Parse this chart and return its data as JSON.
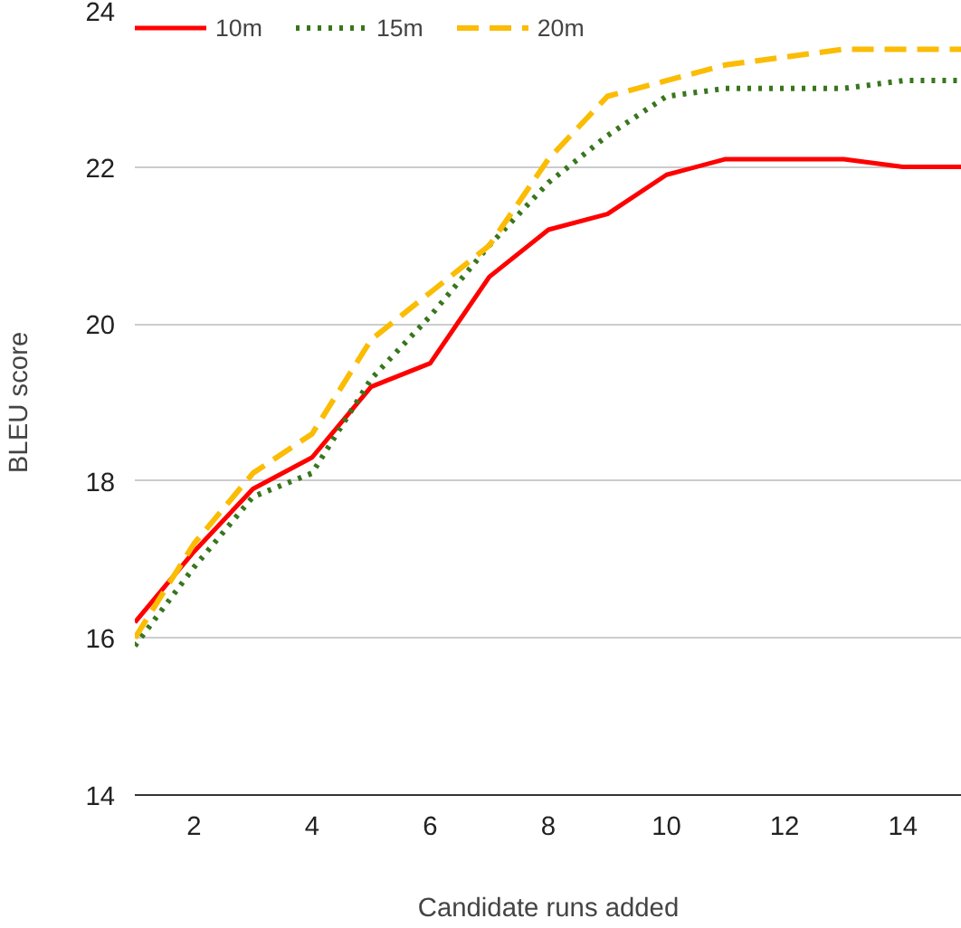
{
  "chart_data": {
    "type": "line",
    "xlabel": "Candidate runs added",
    "ylabel": "BLEU score",
    "x": [
      1,
      2,
      3,
      4,
      5,
      6,
      7,
      8,
      9,
      10,
      11,
      12,
      13,
      14,
      15
    ],
    "series": [
      {
        "name": "10m",
        "color": "#ff0000",
        "line_style": "solid",
        "values": [
          16.2,
          17.1,
          17.9,
          18.3,
          19.2,
          19.5,
          20.6,
          21.2,
          21.4,
          21.9,
          22.1,
          22.1,
          22.1,
          22.0,
          22.0
        ]
      },
      {
        "name": "15m",
        "color": "#38761d",
        "line_style": "dotted",
        "values": [
          15.9,
          16.9,
          17.8,
          18.1,
          19.3,
          20.1,
          21.0,
          21.8,
          22.4,
          22.9,
          23.0,
          23.0,
          23.0,
          23.1,
          23.1
        ]
      },
      {
        "name": "20m",
        "color": "#fbbc04",
        "line_style": "dashed",
        "values": [
          16.0,
          17.2,
          18.1,
          18.6,
          19.8,
          20.4,
          21.0,
          22.1,
          22.9,
          23.1,
          23.3,
          23.4,
          23.5,
          23.5,
          23.5
        ]
      }
    ],
    "xlim": [
      1,
      15
    ],
    "ylim": [
      14,
      24
    ],
    "xticks": [
      2,
      4,
      6,
      8,
      10,
      12,
      14
    ],
    "yticks": [
      14,
      16,
      18,
      20,
      22,
      24
    ],
    "grid": "y",
    "legend": "top left",
    "marker": "none"
  }
}
